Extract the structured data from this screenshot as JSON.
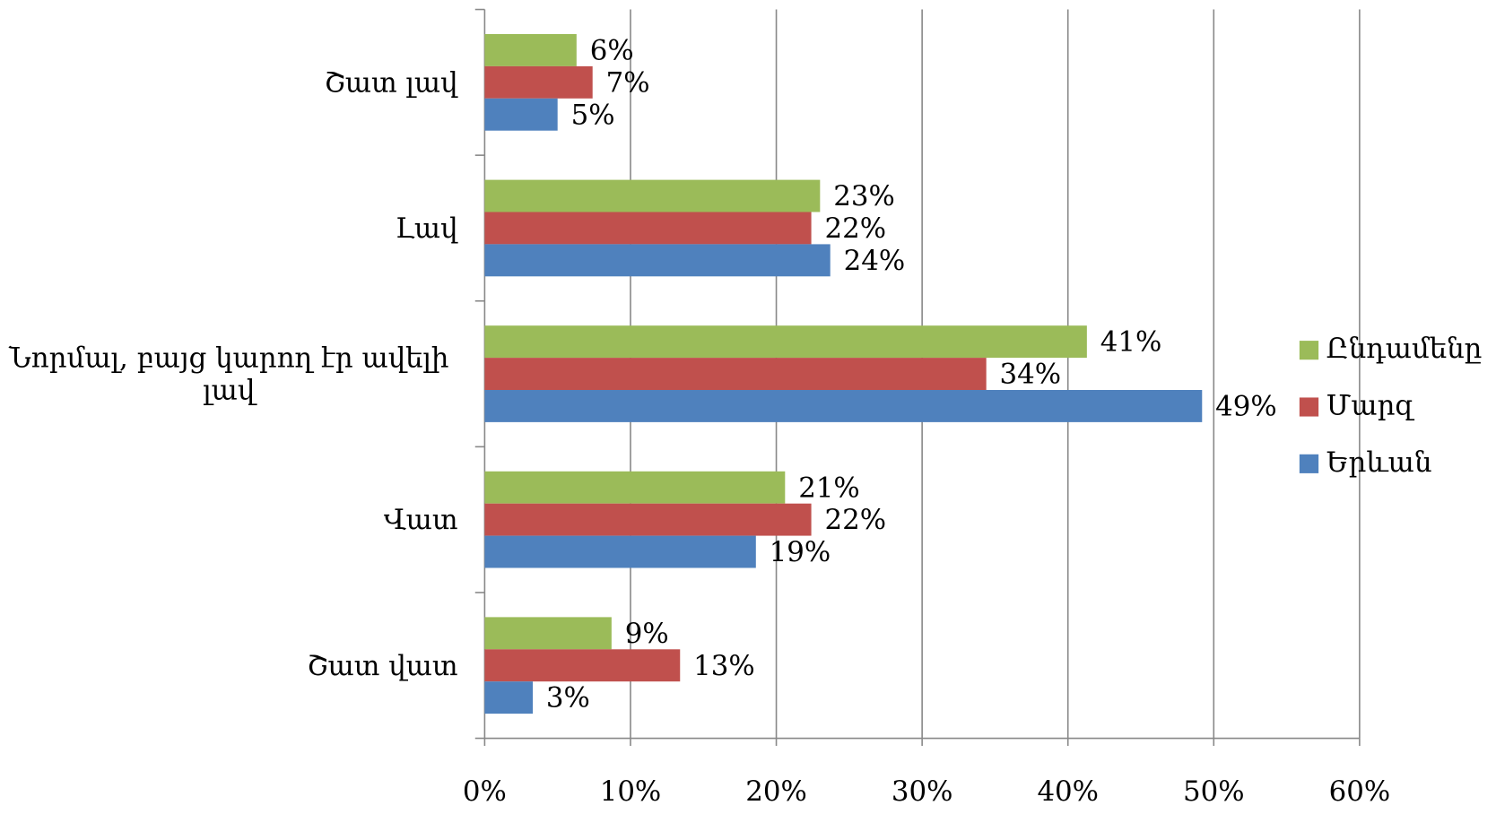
{
  "chart_data": {
    "type": "barh",
    "categories": [
      "Շատ լավ",
      "Լավ",
      "Նորմալ, բայց կարող էր ավելի լավ",
      "Վատ",
      "Շատ  վատ"
    ],
    "series": [
      {
        "name": "Ընդամենը",
        "color": "#9bbb59",
        "values": [
          6.3,
          23.0,
          41.3,
          20.6,
          8.7
        ],
        "value_labels": [
          "6%",
          "23%",
          "41%",
          "21%",
          "9%"
        ]
      },
      {
        "name": "Մարզ",
        "color": "#c0504d",
        "values": [
          7.4,
          22.4,
          34.4,
          22.4,
          13.4
        ],
        "value_labels": [
          "7%",
          "22%",
          "34%",
          "22%",
          "13%"
        ]
      },
      {
        "name": "Երևան",
        "color": "#4f81bd",
        "values": [
          5.0,
          23.7,
          49.2,
          18.6,
          3.3
        ],
        "value_labels": [
          "5%",
          "24%",
          "49%",
          "19%",
          "3%"
        ]
      }
    ],
    "xlim": [
      0,
      60
    ],
    "xticks": [
      {
        "value": 0,
        "label": "0%"
      },
      {
        "value": 10,
        "label": "10%"
      },
      {
        "value": 20,
        "label": "20%"
      },
      {
        "value": 30,
        "label": "30%"
      },
      {
        "value": 40,
        "label": "40%"
      },
      {
        "value": 50,
        "label": "50%"
      },
      {
        "value": 60,
        "label": "60%"
      }
    ],
    "grid": true,
    "legend": "right"
  }
}
